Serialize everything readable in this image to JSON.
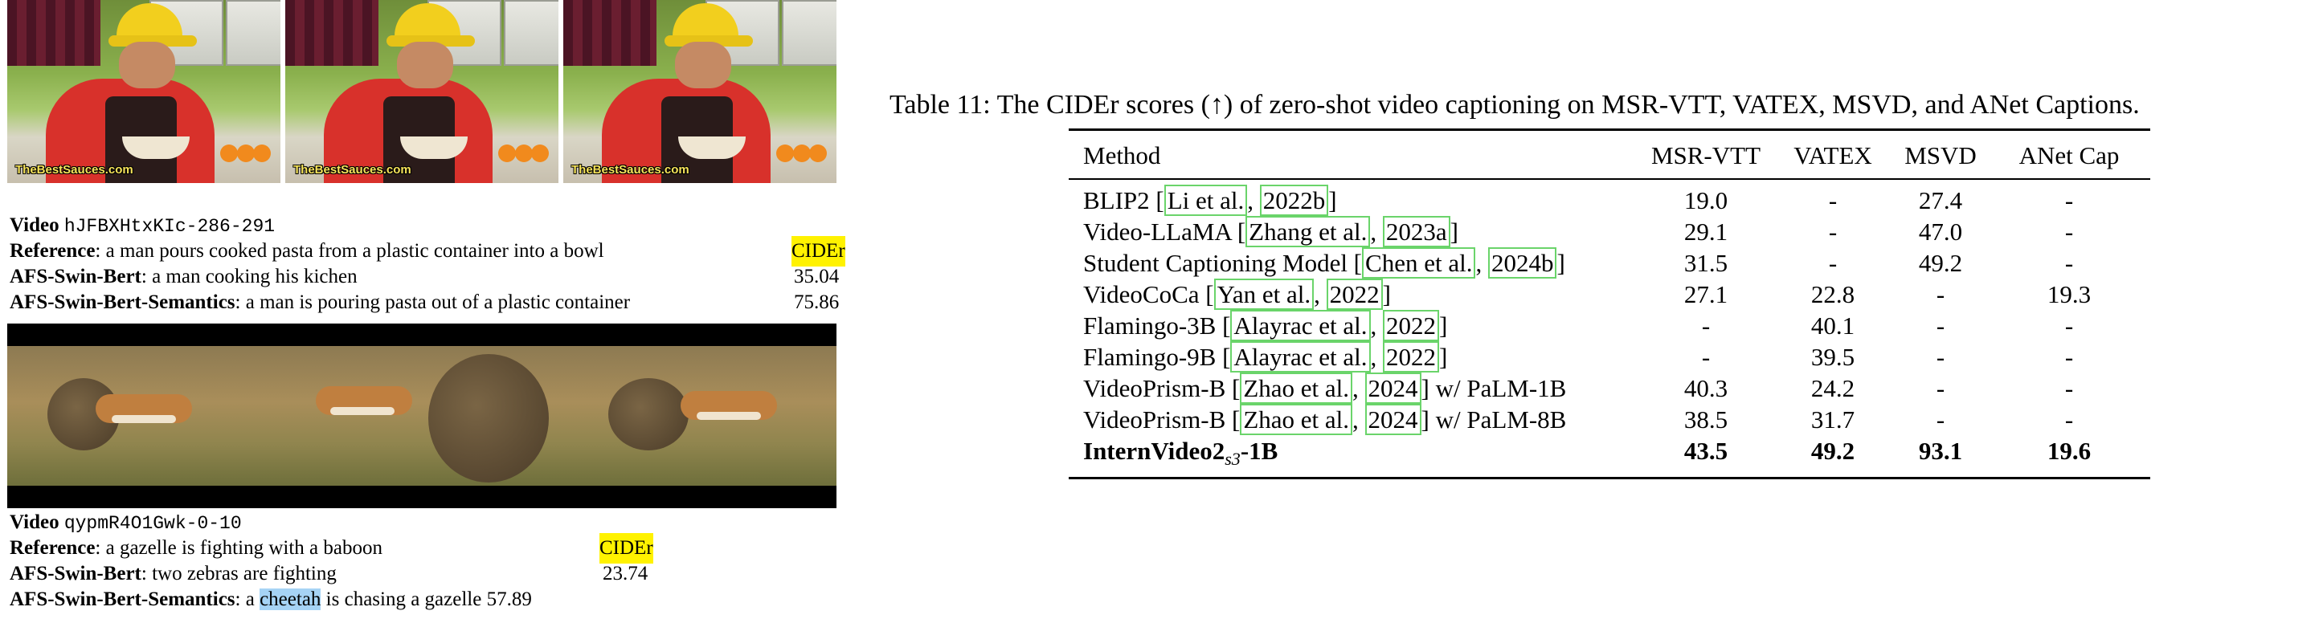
{
  "figure": {
    "watermark": "TheBestSauces.com",
    "example1": {
      "video_label": "Video",
      "video_id": "hJFBXHtxKIc-286-291",
      "score_header": "CIDEr",
      "reference_label": "Reference",
      "reference_text": ": a man pours cooked pasta from a plastic container into a bowl",
      "model1_label": "AFS-Swin-Bert",
      "model1_text": ": a man cooking his kichen",
      "model1_score": "35.04",
      "model2_label": "AFS-Swin-Bert-Semantics",
      "model2_text": ": a man is pouring pasta out of a plastic container",
      "model2_score": "75.86"
    },
    "example2": {
      "video_label": "Video",
      "video_id": "qypmR4O1Gwk-0-10",
      "score_header": "CIDEr",
      "reference_label": "Reference",
      "reference_text": ": a gazelle is fighting with a baboon",
      "model1_label": "AFS-Swin-Bert",
      "model1_text": ": two zebras are fighting",
      "model1_score": "23.74",
      "model2_label": "AFS-Swin-Bert-Semantics",
      "model2_pre": ": a ",
      "model2_highlight": "cheetah",
      "model2_post": " is chasing a gazelle",
      "model2_score": "57.89"
    }
  },
  "table": {
    "caption": "Table 11: The CIDEr scores (↑) of zero-shot video captioning on MSR-VTT, VATEX, MSVD, and ANet Captions.",
    "headers": [
      "Method",
      "MSR-VTT",
      "VATEX",
      "MSVD",
      "ANet Cap"
    ],
    "rows": [
      {
        "pre": "BLIP2 [",
        "cite": "Li et al.",
        "mid": ", ",
        "cite2": "2022b",
        "post": "]",
        "values": [
          "19.0",
          "-",
          "27.4",
          "-"
        ]
      },
      {
        "pre": "Video-LLaMA [",
        "cite": "Zhang et al.",
        "mid": ", ",
        "cite2": "2023a",
        "post": "]",
        "values": [
          "29.1",
          "-",
          "47.0",
          "-"
        ]
      },
      {
        "pre": "Student Captioning Model [",
        "cite": "Chen et al.",
        "mid": ", ",
        "cite2": "2024b",
        "post": "]",
        "values": [
          "31.5",
          "-",
          "49.2",
          "-"
        ]
      },
      {
        "pre": "VideoCoCa [",
        "cite": "Yan et al.",
        "mid": ", ",
        "cite2": "2022",
        "post": "]",
        "values": [
          "27.1",
          "22.8",
          "-",
          "19.3"
        ]
      },
      {
        "pre": "Flamingo-3B [",
        "cite": "Alayrac et al.",
        "mid": ", ",
        "cite2": "2022",
        "post": "]",
        "values": [
          "-",
          "40.1",
          "-",
          "-"
        ]
      },
      {
        "pre": "Flamingo-9B [",
        "cite": "Alayrac et al.",
        "mid": ", ",
        "cite2": "2022",
        "post": "]",
        "values": [
          "-",
          "39.5",
          "-",
          "-"
        ]
      },
      {
        "pre": "VideoPrism-B [",
        "cite": "Zhao et al.",
        "mid": ", ",
        "cite2": "2024",
        "post": "] w/ PaLM-1B",
        "values": [
          "40.3",
          "24.2",
          "-",
          "-"
        ]
      },
      {
        "pre": "VideoPrism-B [",
        "cite": "Zhao et al.",
        "mid": ", ",
        "cite2": "2024",
        "post": "] w/ PaLM-8B",
        "values": [
          "38.5",
          "31.7",
          "-",
          "-"
        ]
      }
    ],
    "final_row": {
      "name_main": "InternVideo2",
      "name_sub": "s3",
      "name_post": "-1B",
      "values": [
        "43.5",
        "49.2",
        "93.1",
        "19.6"
      ]
    }
  }
}
